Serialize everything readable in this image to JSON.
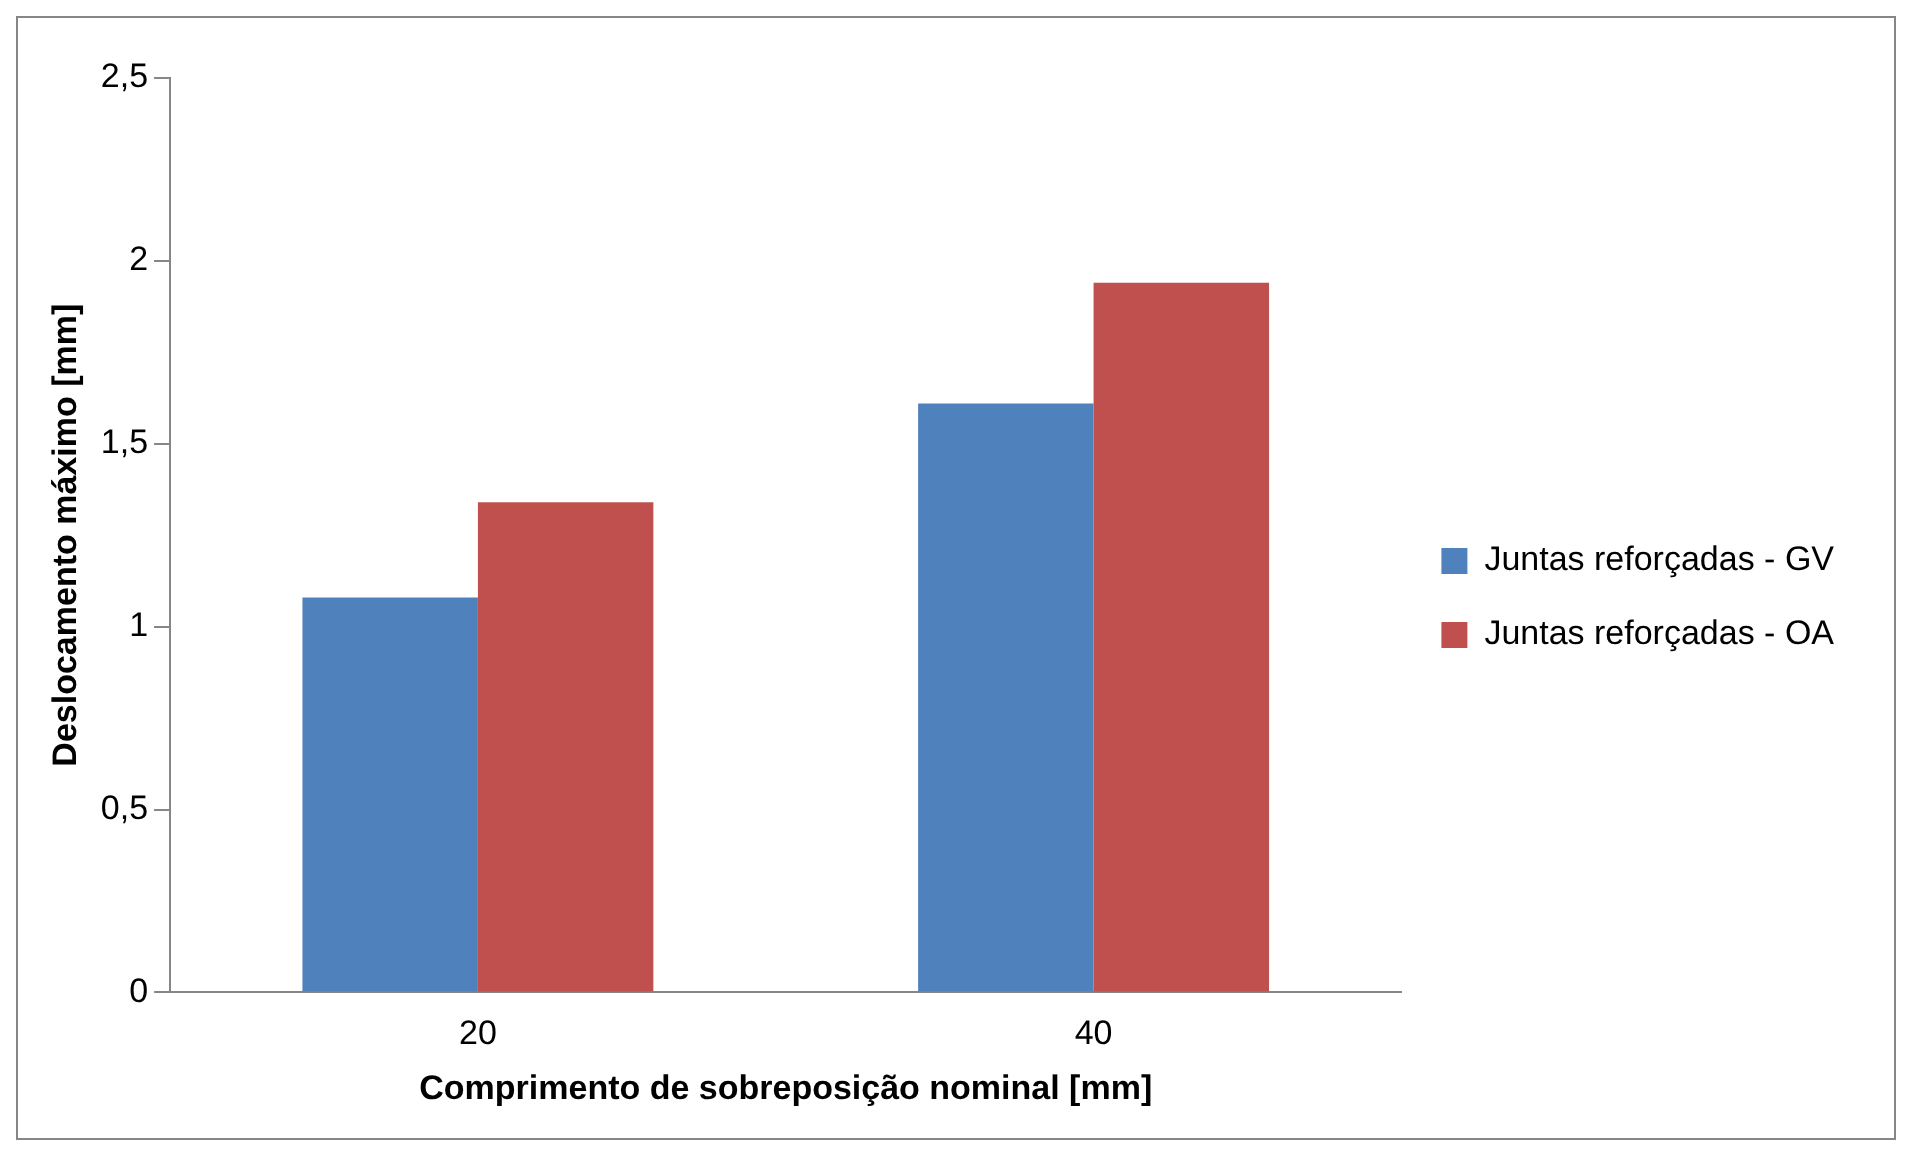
{
  "chart_data": {
    "type": "bar",
    "xlabel": "Comprimento de sobreposição nominal [mm]",
    "ylabel": "Deslocamento máximo [mm]",
    "categories": [
      "20",
      "40"
    ],
    "series": [
      {
        "name": "Juntas reforçadas - GV",
        "color": "#4f81bd",
        "values": [
          1.08,
          1.61
        ]
      },
      {
        "name": "Juntas reforçadas - OA",
        "color": "#c0504d",
        "values": [
          1.34,
          1.94
        ]
      }
    ],
    "ylim": [
      0,
      2.5
    ],
    "yticks": [
      {
        "value": 0,
        "label": "0"
      },
      {
        "value": 0.5,
        "label": "0,5"
      },
      {
        "value": 1,
        "label": "1"
      },
      {
        "value": 1.5,
        "label": "1,5"
      },
      {
        "value": 2,
        "label": "2"
      },
      {
        "value": 2.5,
        "label": "2,5"
      }
    ],
    "grid": false,
    "legend": "right"
  }
}
